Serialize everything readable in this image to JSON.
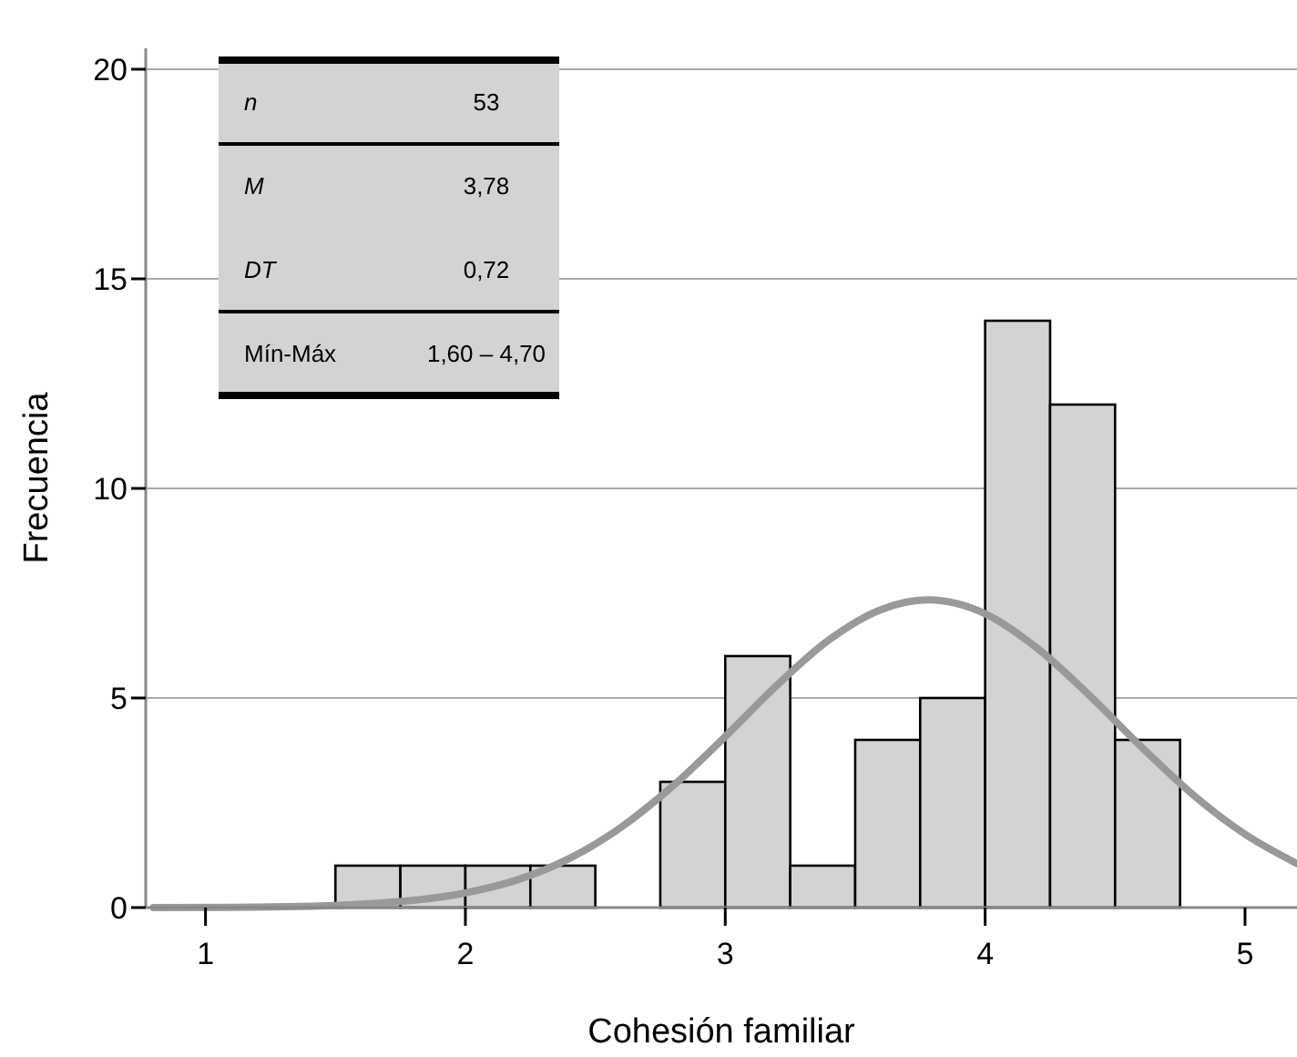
{
  "chart_data": {
    "type": "histogram",
    "xlabel": "Cohesión familiar",
    "ylabel": "Frecuencia",
    "bins": [
      1.5,
      1.75,
      2,
      2.25,
      2.5,
      2.75,
      3,
      3.25,
      3.5,
      3.75,
      4,
      4.25,
      4.5,
      4.75
    ],
    "series": [
      {
        "color": "#d3d3d3",
        "values": [
          1,
          1,
          1,
          1,
          0,
          3,
          6,
          1,
          4,
          5,
          14,
          12,
          4
        ]
      },
      {
        "type": "line",
        "color": "#999999",
        "x": [
          0.8,
          1.2,
          1.6,
          2.0,
          2.2,
          2.4,
          2.6,
          2.8,
          3.0,
          3.2,
          3.4,
          3.6,
          3.78,
          4.0,
          4.2,
          4.4,
          4.6,
          4.8,
          5.0,
          5.2
        ],
        "values": [
          0,
          0.01,
          0.08,
          0.35,
          0.66,
          1.17,
          1.92,
          2.91,
          4.08,
          5.31,
          6.39,
          7.11,
          7.34,
          7.01,
          6.19,
          5.07,
          3.84,
          2.69,
          1.75,
          1.05
        ]
      }
    ],
    "xlim": [
      0.77,
      5.2
    ],
    "xticks": [
      1,
      2,
      3,
      4,
      5
    ],
    "ylim": [
      0,
      20.5
    ],
    "yticks": [
      0,
      5,
      10,
      15,
      20
    ],
    "grid": "y",
    "annotations": [
      "n",
      "53",
      "M",
      "3,78",
      "DT",
      "0,72",
      "Mín-Máx",
      "1,60 – 4,70"
    ]
  }
}
